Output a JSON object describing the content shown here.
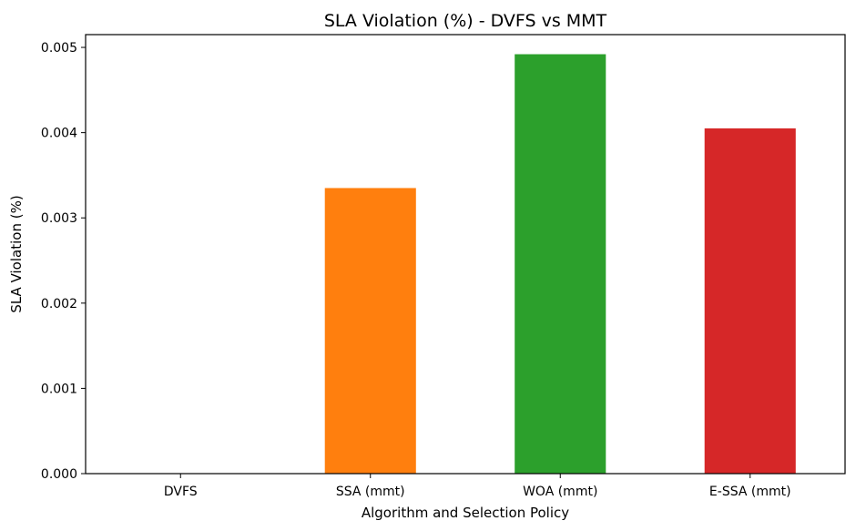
{
  "chart_data": {
    "type": "bar",
    "title": "SLA Violation (%) - DVFS vs MMT",
    "xlabel": "Algorithm and Selection Policy",
    "ylabel": "SLA Violation (%)",
    "categories": [
      "DVFS",
      "SSA (mmt)",
      "WOA (mmt)",
      "E-SSA (mmt)"
    ],
    "values": [
      0.0,
      0.00335,
      0.00492,
      0.00405
    ],
    "colors": [
      "#1f77b4",
      "#ff7f0e",
      "#2ca02c",
      "#d62728"
    ],
    "ylim": [
      0,
      0.00515
    ],
    "yticks": [
      0.0,
      0.001,
      0.002,
      0.003,
      0.004,
      0.005
    ],
    "ytick_labels": [
      "0.000",
      "0.001",
      "0.002",
      "0.003",
      "0.004",
      "0.005"
    ],
    "grid": false,
    "legend": "none"
  }
}
